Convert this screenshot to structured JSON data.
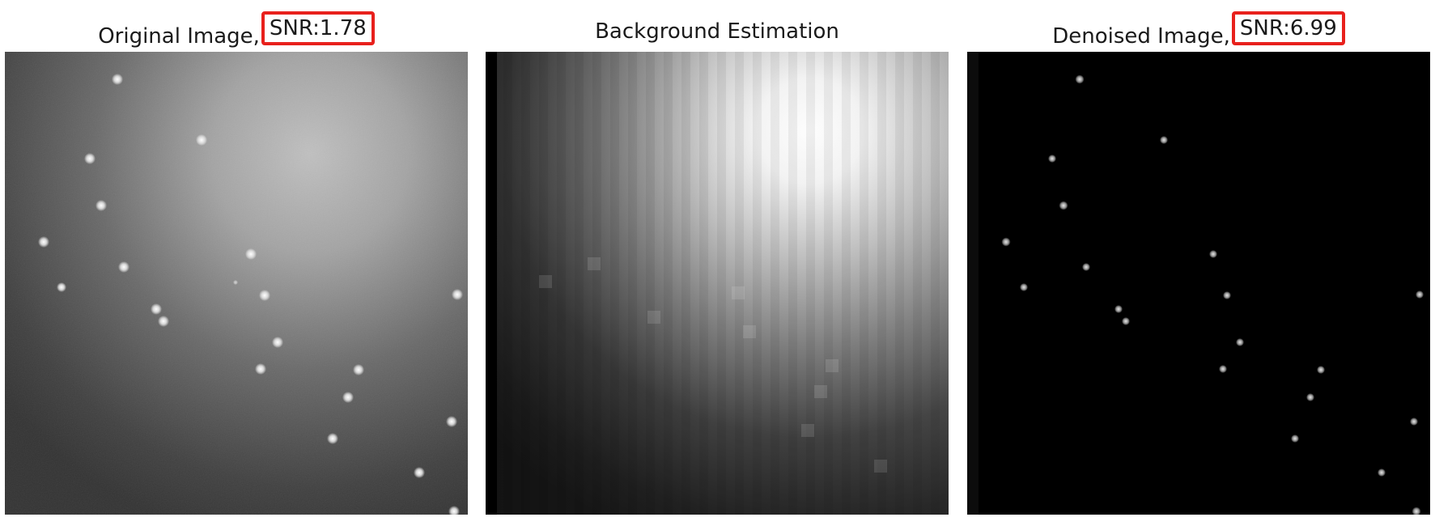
{
  "panels": [
    {
      "title_text": "Original Image,",
      "snr_text": "SNR:1.78"
    },
    {
      "title_text": "Background Estimation"
    },
    {
      "title_text": "Denoised Image,",
      "snr_text": "SNR:6.99"
    }
  ],
  "colors": {
    "highlight_box": "#e8201c",
    "background": "#ffffff"
  }
}
